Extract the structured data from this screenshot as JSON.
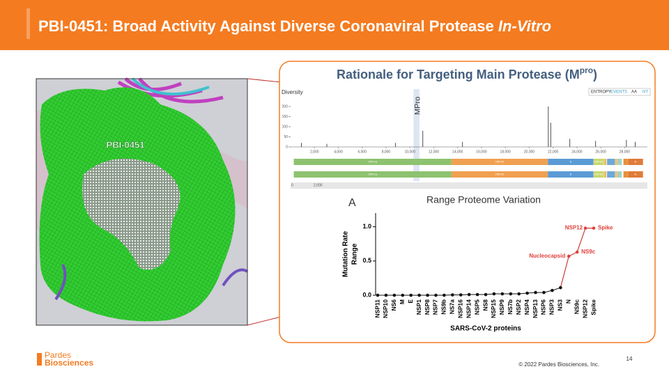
{
  "header": {
    "title": "PBI-0451: Broad Activity Against Diverse Coronaviral Protease ",
    "title_italic": "In-Vitro"
  },
  "figure": {
    "label": "PBI-0451"
  },
  "panel": {
    "title": "Rationale for Targeting Main Protease (M",
    "title_sup": "pro",
    "title_end": ")",
    "genome": {
      "y_label": "Diversity",
      "controls": [
        "ENTROPY",
        "EVENTS",
        "AA",
        "NT"
      ],
      "highlight_label": "MPro",
      "highlight": [
        10300,
        10800
      ],
      "xlim": [
        0,
        29903
      ],
      "ylim": [
        0,
        200
      ],
      "yticks": [
        0,
        50,
        100,
        150,
        200
      ],
      "xticks": [
        {
          "value": 2000,
          "label": "2,000"
        },
        {
          "value": 4000,
          "label": "4,000"
        },
        {
          "value": 6000,
          "label": "6,000"
        },
        {
          "value": 8000,
          "label": "8,000"
        },
        {
          "value": 10000,
          "label": "10,000"
        },
        {
          "value": 12000,
          "label": "12,000"
        },
        {
          "value": 14000,
          "label": "14,000"
        },
        {
          "value": 16000,
          "label": "16,000"
        },
        {
          "value": 18000,
          "label": "18,000"
        },
        {
          "value": 20000,
          "label": "20,000"
        },
        {
          "value": 22000,
          "label": "22,000"
        },
        {
          "value": 24000,
          "label": "24,000"
        },
        {
          "value": 26000,
          "label": "26,000"
        },
        {
          "value": 28000,
          "label": "28,000"
        }
      ],
      "spikes": {
        "x": [
          900,
          3037,
          8782,
          11083,
          14408,
          21600,
          21800,
          23403,
          25563,
          28144,
          28881
        ],
        "values": [
          20,
          15,
          20,
          80,
          25,
          200,
          120,
          40,
          30,
          35,
          25
        ]
      },
      "genes": [
        {
          "name": "ORF1a",
          "start": 266,
          "end": 13483,
          "color": "#8dc26f"
        },
        {
          "name": "ORF1b",
          "start": 13483,
          "end": 21555,
          "color": "#f0a050"
        },
        {
          "name": "S",
          "start": 21563,
          "end": 25384,
          "color": "#5b9bd5"
        },
        {
          "name": "ORF3a",
          "start": 25393,
          "end": 26220,
          "color": "#c7d86b"
        },
        {
          "name": "E",
          "start": 26245,
          "end": 26472,
          "color": "#e8c060"
        },
        {
          "name": "M",
          "start": 26523,
          "end": 27191,
          "color": "#6fa8dc"
        },
        {
          "name": "ORF6",
          "start": 27202,
          "end": 27387,
          "color": "#f6c26b"
        },
        {
          "name": "ORF7a",
          "start": 27394,
          "end": 27759,
          "color": "#9fd3c7"
        },
        {
          "name": "ORF8",
          "start": 27894,
          "end": 28259,
          "color": "#e69138"
        },
        {
          "name": "N",
          "start": 28274,
          "end": 29533,
          "color": "#e07b39"
        }
      ],
      "nav_labels": [
        "0",
        "2,000"
      ]
    },
    "chart": {
      "type": "line",
      "panel_label": "A",
      "title": "Range Proteome Variation",
      "y_label": [
        "Mutation Rate",
        "Range"
      ],
      "x_label": "SARS-CoV-2 proteins",
      "categories": [
        "NSP11",
        "NSP10",
        "NS6",
        "M",
        "E",
        "NSP1",
        "NSP8",
        "NSP7",
        "NS9b",
        "NS7a",
        "NSP16",
        "NSP14",
        "NSP5",
        "NS8",
        "NSP15",
        "NSP9",
        "NS7b",
        "NSP2",
        "NSP4",
        "NSP13",
        "NSP6",
        "NSP3",
        "NS3",
        "N",
        "NS9c",
        "NSP12",
        "Spike"
      ],
      "values": [
        0,
        0,
        0,
        0,
        0,
        0,
        0,
        0,
        0,
        0.005,
        0.005,
        0.01,
        0.01,
        0.01,
        0.02,
        0.02,
        0.02,
        0.02,
        0.03,
        0.04,
        0.04,
        0.07,
        0.11,
        0.57,
        0.63,
        0.98,
        0.98
      ],
      "color": "#111111",
      "highlight_color": "#e0403a",
      "ylim": [
        0,
        1.2
      ],
      "yticks": [
        {
          "value": 0,
          "label": "0.0"
        },
        {
          "value": 0.5,
          "label": "0.5"
        },
        {
          "value": 1,
          "label": "1.0"
        }
      ],
      "annotations": [
        {
          "text": "Nucleocapsid",
          "target": "N"
        },
        {
          "text": "NS9c",
          "target": "NS9c"
        },
        {
          "text": "NSP12",
          "target": "NSP12"
        },
        {
          "text": "Spike",
          "target": "Spike"
        }
      ]
    }
  },
  "footer": {
    "logo": [
      "Pardes",
      "Biosciences"
    ],
    "page": "14",
    "copyright": "© 2022 Pardes Biosciences, Inc."
  }
}
